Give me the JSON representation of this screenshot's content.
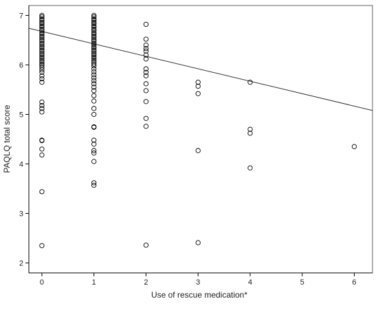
{
  "chart_data": {
    "type": "scatter",
    "xlabel": "Use of rescue medication*",
    "ylabel": "PAQLQ total score",
    "xlim": [
      -0.25,
      6.35
    ],
    "ylim": [
      1.8,
      7.2
    ],
    "x_ticks": [
      0,
      1,
      2,
      3,
      4,
      5,
      6
    ],
    "y_ticks": [
      2,
      3,
      4,
      5,
      6,
      7
    ],
    "grid": false,
    "marker": "open-circle",
    "colors": {
      "marker": "#000000",
      "fit_line": "#333333",
      "axis": "#000000",
      "frame": "#666666"
    },
    "fit_line": {
      "x": [
        -0.25,
        6.35
      ],
      "y": [
        6.74,
        5.08
      ]
    },
    "points": [
      {
        "x": 0,
        "y": 7.0
      },
      {
        "x": 0,
        "y": 6.97
      },
      {
        "x": 0,
        "y": 6.93
      },
      {
        "x": 0,
        "y": 6.9
      },
      {
        "x": 0,
        "y": 6.86
      },
      {
        "x": 0,
        "y": 6.83
      },
      {
        "x": 0,
        "y": 6.79
      },
      {
        "x": 0,
        "y": 6.76
      },
      {
        "x": 0,
        "y": 6.72
      },
      {
        "x": 0,
        "y": 6.69
      },
      {
        "x": 0,
        "y": 6.65
      },
      {
        "x": 0,
        "y": 6.62
      },
      {
        "x": 0,
        "y": 6.58
      },
      {
        "x": 0,
        "y": 6.55
      },
      {
        "x": 0,
        "y": 6.51
      },
      {
        "x": 0,
        "y": 6.48
      },
      {
        "x": 0,
        "y": 6.44
      },
      {
        "x": 0,
        "y": 6.41
      },
      {
        "x": 0,
        "y": 6.37
      },
      {
        "x": 0,
        "y": 6.34
      },
      {
        "x": 0,
        "y": 6.3
      },
      {
        "x": 0,
        "y": 6.27
      },
      {
        "x": 0,
        "y": 6.23
      },
      {
        "x": 0,
        "y": 6.2
      },
      {
        "x": 0,
        "y": 6.16
      },
      {
        "x": 0,
        "y": 6.13
      },
      {
        "x": 0,
        "y": 6.09
      },
      {
        "x": 0,
        "y": 6.06
      },
      {
        "x": 0,
        "y": 6.02
      },
      {
        "x": 0,
        "y": 5.99
      },
      {
        "x": 0,
        "y": 5.95
      },
      {
        "x": 0,
        "y": 5.9
      },
      {
        "x": 0,
        "y": 5.85
      },
      {
        "x": 0,
        "y": 5.78
      },
      {
        "x": 0,
        "y": 5.72
      },
      {
        "x": 0,
        "y": 5.65
      },
      {
        "x": 0,
        "y": 5.25
      },
      {
        "x": 0,
        "y": 5.18
      },
      {
        "x": 0,
        "y": 5.12
      },
      {
        "x": 0,
        "y": 5.05
      },
      {
        "x": 0,
        "y": 4.48
      },
      {
        "x": 0,
        "y": 4.47
      },
      {
        "x": 0,
        "y": 4.3
      },
      {
        "x": 0,
        "y": 4.18
      },
      {
        "x": 0,
        "y": 3.44
      },
      {
        "x": 0,
        "y": 2.35
      },
      {
        "x": 1,
        "y": 7.0
      },
      {
        "x": 1,
        "y": 6.97
      },
      {
        "x": 1,
        "y": 6.93
      },
      {
        "x": 1,
        "y": 6.9
      },
      {
        "x": 1,
        "y": 6.86
      },
      {
        "x": 1,
        "y": 6.83
      },
      {
        "x": 1,
        "y": 6.79
      },
      {
        "x": 1,
        "y": 6.76
      },
      {
        "x": 1,
        "y": 6.72
      },
      {
        "x": 1,
        "y": 6.69
      },
      {
        "x": 1,
        "y": 6.65
      },
      {
        "x": 1,
        "y": 6.62
      },
      {
        "x": 1,
        "y": 6.58
      },
      {
        "x": 1,
        "y": 6.55
      },
      {
        "x": 1,
        "y": 6.51
      },
      {
        "x": 1,
        "y": 6.48
      },
      {
        "x": 1,
        "y": 6.44
      },
      {
        "x": 1,
        "y": 6.41
      },
      {
        "x": 1,
        "y": 6.37
      },
      {
        "x": 1,
        "y": 6.34
      },
      {
        "x": 1,
        "y": 6.3
      },
      {
        "x": 1,
        "y": 6.27
      },
      {
        "x": 1,
        "y": 6.23
      },
      {
        "x": 1,
        "y": 6.2
      },
      {
        "x": 1,
        "y": 6.16
      },
      {
        "x": 1,
        "y": 6.13
      },
      {
        "x": 1,
        "y": 6.09
      },
      {
        "x": 1,
        "y": 6.06
      },
      {
        "x": 1,
        "y": 6.02
      },
      {
        "x": 1,
        "y": 5.98
      },
      {
        "x": 1,
        "y": 5.92
      },
      {
        "x": 1,
        "y": 5.86
      },
      {
        "x": 1,
        "y": 5.8
      },
      {
        "x": 1,
        "y": 5.74
      },
      {
        "x": 1,
        "y": 5.68
      },
      {
        "x": 1,
        "y": 5.62
      },
      {
        "x": 1,
        "y": 5.55
      },
      {
        "x": 1,
        "y": 5.48
      },
      {
        "x": 1,
        "y": 5.38
      },
      {
        "x": 1,
        "y": 5.27
      },
      {
        "x": 1,
        "y": 5.12
      },
      {
        "x": 1,
        "y": 5.0
      },
      {
        "x": 1,
        "y": 4.75
      },
      {
        "x": 1,
        "y": 4.74
      },
      {
        "x": 1,
        "y": 4.48
      },
      {
        "x": 1,
        "y": 4.4
      },
      {
        "x": 1,
        "y": 4.27
      },
      {
        "x": 1,
        "y": 4.22
      },
      {
        "x": 1,
        "y": 4.05
      },
      {
        "x": 1,
        "y": 3.62
      },
      {
        "x": 1,
        "y": 3.57
      },
      {
        "x": 2,
        "y": 6.82
      },
      {
        "x": 2,
        "y": 6.52
      },
      {
        "x": 2,
        "y": 6.4
      },
      {
        "x": 2,
        "y": 6.33
      },
      {
        "x": 2,
        "y": 6.28
      },
      {
        "x": 2,
        "y": 6.2
      },
      {
        "x": 2,
        "y": 6.12
      },
      {
        "x": 2,
        "y": 5.92
      },
      {
        "x": 2,
        "y": 5.85
      },
      {
        "x": 2,
        "y": 5.78
      },
      {
        "x": 2,
        "y": 5.62
      },
      {
        "x": 2,
        "y": 5.48
      },
      {
        "x": 2,
        "y": 5.26
      },
      {
        "x": 2,
        "y": 4.92
      },
      {
        "x": 2,
        "y": 4.76
      },
      {
        "x": 2,
        "y": 2.36
      },
      {
        "x": 3,
        "y": 5.65
      },
      {
        "x": 3,
        "y": 5.57
      },
      {
        "x": 3,
        "y": 5.42
      },
      {
        "x": 3,
        "y": 4.27
      },
      {
        "x": 3,
        "y": 2.41
      },
      {
        "x": 4,
        "y": 5.65
      },
      {
        "x": 4,
        "y": 4.7
      },
      {
        "x": 4,
        "y": 4.62
      },
      {
        "x": 4,
        "y": 3.92
      },
      {
        "x": 6,
        "y": 4.35
      }
    ]
  }
}
